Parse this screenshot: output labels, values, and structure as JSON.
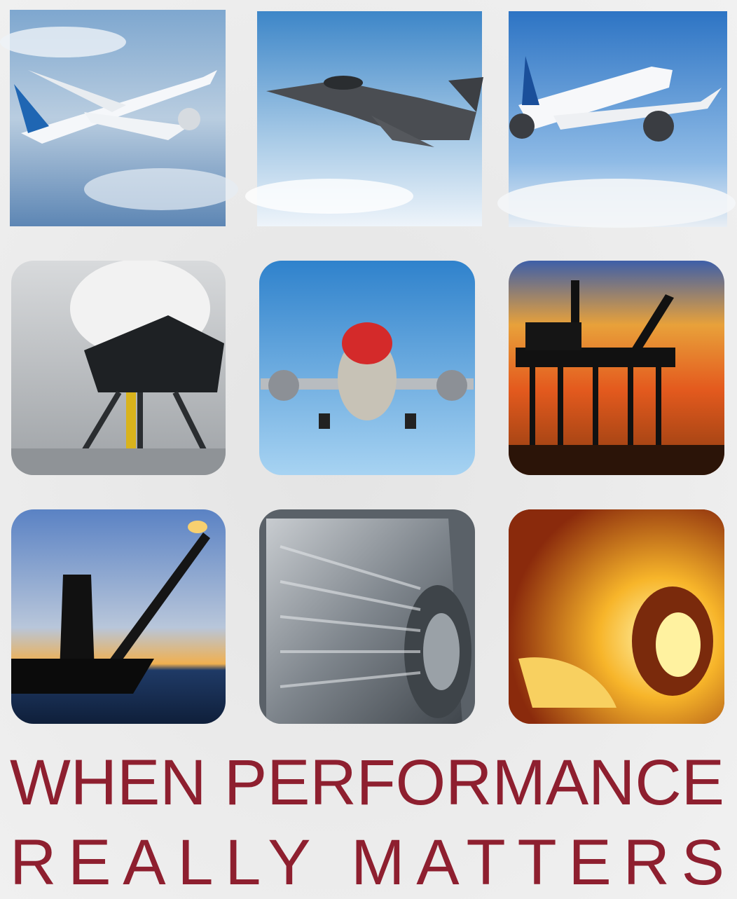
{
  "headline": {
    "lines": [
      "WHEN PERFORMANCE",
      "REALLY MATTERS"
    ]
  }
}
